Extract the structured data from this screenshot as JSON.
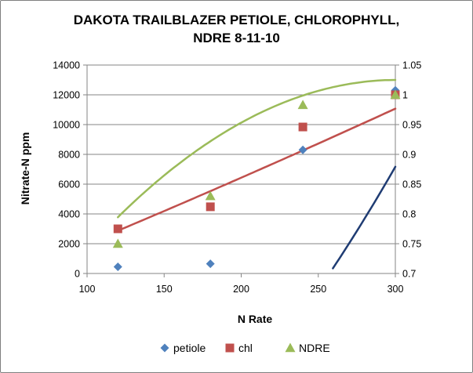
{
  "chart_data": {
    "type": "scatter",
    "title_lines": [
      "DAKOTA TRAILBLAZER PETIOLE, CHLOROPHYLL,",
      "NDRE 8-11-10"
    ],
    "xlabel": "N Rate",
    "ylabel": "Nitrate-N ppm",
    "y2label": "",
    "xlim": [
      100,
      300
    ],
    "ylim": [
      0,
      14000
    ],
    "y2lim": [
      0.7,
      1.05
    ],
    "x_ticks": [
      "100",
      "150",
      "200",
      "250",
      "300"
    ],
    "y_ticks": [
      "0",
      "2000",
      "4000",
      "6000",
      "8000",
      "10000",
      "12000",
      "14000"
    ],
    "y2_ticks": [
      "0.7",
      "0.75",
      "0.8",
      "0.85",
      "0.9",
      "0.95",
      "1",
      "1.05"
    ],
    "grid": "horizontal",
    "legend": "bottom",
    "series": [
      {
        "name": "petiole",
        "axis": "left",
        "marker": "diamond",
        "color": "#4f81bd",
        "trend_color": "#1f3c73",
        "x": [
          120,
          180,
          240,
          300
        ],
        "y": [
          450,
          650,
          8300,
          12300
        ],
        "trend": [
          -20000,
          0.56,
          0.3
        ]
      },
      {
        "name": "chl",
        "axis": "right",
        "marker": "square",
        "color": "#c0504d",
        "trend_color": "#c0504d",
        "x": [
          120,
          180,
          240,
          300
        ],
        "y": [
          0.775,
          0.812,
          0.946,
          1.0
        ],
        "trend": [
          0.6447,
          0.001028,
          2.63e-07
        ]
      },
      {
        "name": "NDRE",
        "axis": "right",
        "marker": "triangle",
        "color": "#9bbb59",
        "trend_color": "#9bbb59",
        "x": [
          120,
          180,
          240,
          300
        ],
        "y": [
          0.75,
          0.83,
          0.983,
          1.0
        ],
        "trend": [
          0.3878,
          0.004233,
          -7.03e-06
        ]
      }
    ]
  }
}
